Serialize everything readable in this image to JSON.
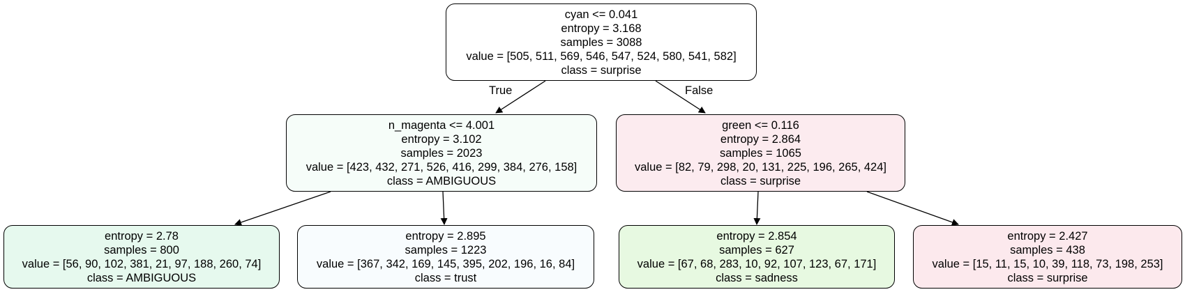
{
  "tree": {
    "nodes": [
      {
        "split": "cyan <= 0.041",
        "entropy": "entropy = 3.168",
        "samples": "samples = 3088",
        "value": "value = [505, 511, 569, 546, 547, 524, 580, 541, 582]",
        "class": "class = surprise",
        "fill": "#ffffff"
      },
      {
        "split": "n_magenta <= 4.001",
        "entropy": "entropy = 3.102",
        "samples": "samples = 2023",
        "value": "value = [423, 432, 271, 526, 416, 299, 384, 276, 158]",
        "class": "class = AMBIGUOUS",
        "fill": "#f6fdf9"
      },
      {
        "split": "green <= 0.116",
        "entropy": "entropy = 2.864",
        "samples": "samples = 1065",
        "value": "value = [82, 79, 298, 20, 131, 225, 196, 265, 424]",
        "class": "class = surprise",
        "fill": "#fcebef"
      },
      {
        "entropy": "entropy = 2.78",
        "samples": "samples = 800",
        "value": "value = [56, 90, 102, 381, 21, 97, 188, 260, 74]",
        "class": "class = AMBIGUOUS",
        "fill": "#e6f9ee"
      },
      {
        "entropy": "entropy = 2.895",
        "samples": "samples = 1223",
        "value": "value = [367, 342, 169, 145, 395, 202, 196, 16, 84]",
        "class": "class = trust",
        "fill": "#f8fcfe"
      },
      {
        "entropy": "entropy = 2.854",
        "samples": "samples = 627",
        "value": "value = [67, 68, 283, 10, 92, 107, 123, 67, 171]",
        "class": "class = sadness",
        "fill": "#e7f9e1"
      },
      {
        "entropy": "entropy = 2.427",
        "samples": "samples = 438",
        "value": "value = [15, 11, 15, 10, 39, 118, 73, 198, 253]",
        "class": "class = surprise",
        "fill": "#fce9ed"
      }
    ],
    "edge_labels": {
      "true": "True",
      "false": "False"
    }
  }
}
